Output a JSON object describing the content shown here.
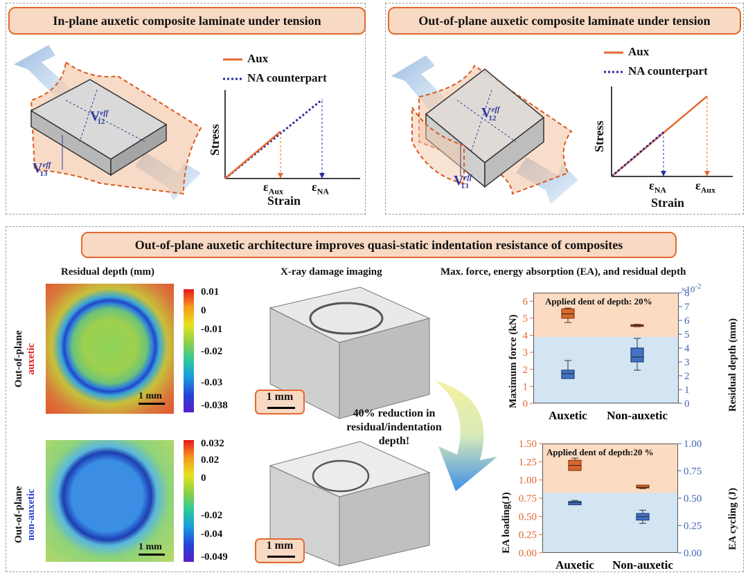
{
  "top_left": {
    "title": "In-plane auxetic composite laminate under tension",
    "v12": "V",
    "v12_sup": "eff",
    "v12_sub": "12",
    "v13": "V",
    "v13_sup": "eff",
    "v13_sub": "13",
    "legend_aux": "Aux",
    "legend_na": "NA counterpart",
    "ylabel": "Stress",
    "xlabel": "Strain",
    "tick1": "ε",
    "tick1_sub": "Aux",
    "tick2": "ε",
    "tick2_sub": "NA"
  },
  "top_right": {
    "title": "Out-of-plane auxetic composite laminate under tension",
    "v12": "V",
    "v12_sup": "eff",
    "v12_sub": "12",
    "v13": "V",
    "v13_sup": "eff",
    "v13_sub": "13",
    "legend_aux": "Aux",
    "legend_na": "NA counterpart",
    "ylabel": "Stress",
    "xlabel": "Strain",
    "tick1": "ε",
    "tick1_sub": "NA",
    "tick2": "ε",
    "tick2_sub": "Aux"
  },
  "bottom": {
    "title": "Out-of-plane auxetic architecture improves quasi-static indentation resistance of composites",
    "residual_title": "Residual depth (mm)",
    "xray_title": "X-ray damage imaging",
    "charts_title": "Max. force, energy absorption (EA), and residual depth",
    "row1_label_a": "Out-of-plane",
    "row1_label_b": "auxetic",
    "row2_label_a": "Out-of-plane",
    "row2_label_b": "non-auxetic",
    "scale": "1 mm",
    "colorbar1": [
      "0.01",
      "0",
      "-0.01",
      "-0.02",
      "-0.03",
      "-0.038"
    ],
    "colorbar2": [
      "0.032",
      "0.02",
      "0",
      "-0.02",
      "-0.04",
      "-0.049"
    ],
    "reduction_text": "40% reduction in residual/indentation depth!",
    "colors": {
      "accent": "#e3682e",
      "banner_bg": "#f8d9c4",
      "aux_red": "#e02020",
      "nonaux_blue": "#2a3fcf",
      "chart_blue": "#4472c4"
    }
  },
  "chart_data": [
    {
      "type": "line",
      "series": [
        {
          "name": "Aux",
          "x": [
            0,
            1
          ],
          "y": [
            0,
            1
          ]
        },
        {
          "name": "NA counterpart",
          "x": [
            0,
            1.6
          ],
          "y": [
            0,
            1.6
          ]
        }
      ],
      "xlabel": "Strain",
      "ylabel": "Stress",
      "xticks": [
        "εAux",
        "εNA"
      ]
    },
    {
      "type": "line",
      "series": [
        {
          "name": "Aux",
          "x": [
            0,
            1.6
          ],
          "y": [
            0,
            1.6
          ]
        },
        {
          "name": "NA counterpart",
          "x": [
            0,
            1
          ],
          "y": [
            0,
            1
          ]
        }
      ],
      "xlabel": "Strain",
      "ylabel": "Stress",
      "xticks": [
        "εNA",
        "εAux"
      ]
    },
    {
      "type": "box",
      "annotation": "Applied dent of depth: 20%",
      "categories": [
        "Auxetic",
        "Non-auxetic"
      ],
      "ylabel": "Maximum force (kN)",
      "ylabel2": "Residual depth (mm)",
      "yticks": [
        "0",
        "1",
        "2",
        "3",
        "4",
        "5",
        "6"
      ],
      "yticks2": [
        "0",
        "1",
        "2",
        "3",
        "4",
        "5",
        "6",
        "7",
        "8"
      ],
      "multiplier2": "×10",
      "multiplier2_exp": "-2",
      "ylim": [
        0,
        6.5
      ],
      "ylim2": [
        0,
        8
      ],
      "force": [
        {
          "q1": 5.0,
          "median": 5.25,
          "q3": 5.55,
          "min": 4.75,
          "max": 5.6
        },
        {
          "q1": 4.52,
          "median": 4.57,
          "q3": 4.62,
          "min": 4.5,
          "max": 4.65
        }
      ],
      "residual": [
        {
          "q1": 1.8,
          "median": 2.15,
          "q3": 2.4,
          "min": 1.8,
          "max": 3.1
        },
        {
          "q1": 3.0,
          "median": 3.35,
          "q3": 4.0,
          "min": 2.4,
          "max": 4.7
        }
      ]
    },
    {
      "type": "box",
      "annotation": "Applied dent of depth:20 %",
      "categories": [
        "Auxetic",
        "Non-auxetic"
      ],
      "ylabel": "EA loading(J)",
      "ylabel2": "EA cycling (J)",
      "yticks": [
        "0.00",
        "0.25",
        "0.50",
        "0.75",
        "1.00",
        "1.25",
        "1.50"
      ],
      "yticks2": [
        "0.00",
        "0.25",
        "0.50",
        "0.75",
        "1.00"
      ],
      "ylim": [
        0,
        1.5
      ],
      "ylim2": [
        0,
        1
      ],
      "ea_loading": [
        {
          "q1": 1.13,
          "median": 1.2,
          "q3": 1.27,
          "min": 1.13,
          "max": 1.3
        },
        {
          "q1": 0.89,
          "median": 0.9,
          "q3": 0.93,
          "min": 0.88,
          "max": 0.93
        }
      ],
      "ea_cycling": [
        {
          "q1": 0.44,
          "median": 0.46,
          "q3": 0.47,
          "min": 0.44,
          "max": 0.48
        },
        {
          "q1": 0.3,
          "median": 0.33,
          "q3": 0.36,
          "min": 0.27,
          "max": 0.39
        }
      ]
    }
  ]
}
